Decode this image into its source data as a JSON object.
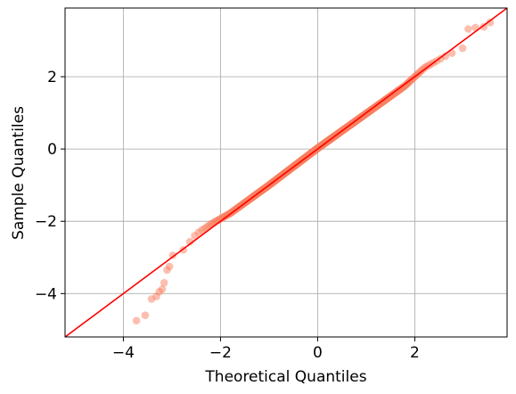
{
  "chart_data": {
    "type": "scatter",
    "title": "",
    "xlabel": "Theoretical Quantiles",
    "ylabel": "Sample Quantiles",
    "xlim": [
      -5.2,
      3.9
    ],
    "ylim": [
      -5.2,
      3.9
    ],
    "xticks": [
      -4,
      -2,
      0,
      2
    ],
    "yticks": [
      -4,
      -2,
      0,
      2
    ],
    "grid": true,
    "reference_line": {
      "label": "",
      "slope": 1,
      "intercept": 0,
      "color": "#ff0000"
    },
    "series": [
      {
        "marker_color": "#fa8060",
        "outlier_points": [
          {
            "x": -3.73,
            "y": -4.75
          },
          {
            "x": -3.55,
            "y": -4.6
          },
          {
            "x": -3.42,
            "y": -4.15
          },
          {
            "x": -3.32,
            "y": -4.08
          },
          {
            "x": -3.26,
            "y": -3.95
          },
          {
            "x": -3.2,
            "y": -3.88
          },
          {
            "x": -3.16,
            "y": -3.7
          },
          {
            "x": -3.1,
            "y": -3.35
          },
          {
            "x": -3.05,
            "y": -3.25
          },
          {
            "x": 3.1,
            "y": 3.32
          },
          {
            "x": 3.25,
            "y": 3.36
          },
          {
            "x": 3.42,
            "y": 3.38
          },
          {
            "x": 3.55,
            "y": 3.5
          }
        ],
        "body": {
          "x_from": -3.0,
          "x_to": 3.05,
          "point_count": 700,
          "deviation_profile": [
            {
              "x": -3.0,
              "dy": 0.05
            },
            {
              "x": -2.8,
              "dy": -0.05
            },
            {
              "x": -2.5,
              "dy": 0.15
            },
            {
              "x": -2.2,
              "dy": 0.12
            },
            {
              "x": -1.8,
              "dy": 0.02
            },
            {
              "x": -1.0,
              "dy": 0.0
            },
            {
              "x": 0.0,
              "dy": 0.02
            },
            {
              "x": 1.0,
              "dy": -0.02
            },
            {
              "x": 1.8,
              "dy": -0.05
            },
            {
              "x": 2.2,
              "dy": 0.05
            },
            {
              "x": 2.6,
              "dy": -0.05
            },
            {
              "x": 3.0,
              "dy": -0.2
            }
          ]
        }
      }
    ]
  }
}
